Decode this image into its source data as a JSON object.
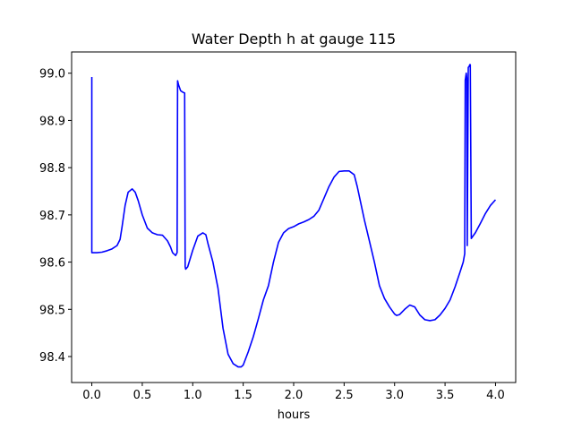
{
  "chart_data": {
    "type": "line",
    "title": "Water Depth h at gauge 115",
    "xlabel": "hours",
    "ylabel": "",
    "xlim": [
      -0.2,
      4.2
    ],
    "ylim": [
      98.345,
      99.045
    ],
    "xticks": [
      0.0,
      0.5,
      1.0,
      1.5,
      2.0,
      2.5,
      3.0,
      3.5,
      4.0
    ],
    "xtick_labels": [
      "0.0",
      "0.5",
      "1.0",
      "1.5",
      "2.0",
      "2.5",
      "3.0",
      "3.5",
      "4.0"
    ],
    "yticks": [
      98.4,
      98.5,
      98.6,
      98.7,
      98.8,
      98.9,
      99.0
    ],
    "ytick_labels": [
      "98.4",
      "98.5",
      "98.6",
      "98.7",
      "98.8",
      "98.9",
      "99.0"
    ],
    "grid": false,
    "legend": "none",
    "series": [
      {
        "color": "#0000ff",
        "x": [
          0.0,
          0.0,
          0.003,
          0.05,
          0.1,
          0.15,
          0.2,
          0.25,
          0.28,
          0.3,
          0.33,
          0.36,
          0.4,
          0.43,
          0.46,
          0.5,
          0.55,
          0.6,
          0.65,
          0.7,
          0.75,
          0.78,
          0.8,
          0.83,
          0.845,
          0.85,
          0.86,
          0.88,
          0.9,
          0.92,
          0.925,
          0.93,
          0.95,
          1.0,
          1.05,
          1.1,
          1.13,
          1.15,
          1.2,
          1.25,
          1.3,
          1.35,
          1.4,
          1.45,
          1.48,
          1.5,
          1.55,
          1.6,
          1.65,
          1.7,
          1.75,
          1.8,
          1.85,
          1.9,
          1.95,
          2.0,
          2.05,
          2.1,
          2.15,
          2.2,
          2.25,
          2.3,
          2.35,
          2.4,
          2.45,
          2.5,
          2.55,
          2.6,
          2.63,
          2.67,
          2.7,
          2.75,
          2.8,
          2.85,
          2.9,
          2.95,
          3.0,
          3.02,
          3.05,
          3.1,
          3.15,
          3.2,
          3.25,
          3.3,
          3.35,
          3.4,
          3.45,
          3.5,
          3.55,
          3.6,
          3.65,
          3.68,
          3.695,
          3.7,
          3.71,
          3.715,
          3.72,
          3.73,
          3.74,
          3.745,
          3.75,
          3.76,
          3.8,
          3.85,
          3.9,
          3.95,
          4.0
        ],
        "y": [
          98.992,
          98.62,
          98.62,
          98.62,
          98.621,
          98.624,
          98.628,
          98.635,
          98.648,
          98.675,
          98.72,
          98.748,
          98.755,
          98.748,
          98.73,
          98.7,
          98.672,
          98.662,
          98.658,
          98.657,
          98.645,
          98.632,
          98.62,
          98.614,
          98.62,
          98.984,
          98.975,
          98.963,
          98.96,
          98.958,
          98.59,
          98.585,
          98.59,
          98.625,
          98.655,
          98.662,
          98.658,
          98.64,
          98.6,
          98.545,
          98.46,
          98.405,
          98.385,
          98.378,
          98.378,
          98.382,
          98.41,
          98.442,
          98.48,
          98.52,
          98.55,
          98.6,
          98.642,
          98.662,
          98.671,
          98.675,
          98.681,
          98.685,
          98.69,
          98.697,
          98.71,
          98.735,
          98.76,
          98.78,
          98.792,
          98.793,
          98.793,
          98.785,
          98.76,
          98.72,
          98.69,
          98.645,
          98.6,
          98.55,
          98.523,
          98.505,
          98.49,
          98.487,
          98.489,
          98.5,
          98.509,
          98.505,
          98.488,
          98.478,
          98.476,
          98.478,
          98.488,
          98.502,
          98.52,
          98.548,
          98.58,
          98.6,
          98.618,
          98.985,
          99.0,
          98.99,
          98.635,
          99.012,
          99.015,
          99.018,
          99.018,
          98.65,
          98.662,
          98.682,
          98.703,
          98.72,
          98.732
        ]
      }
    ]
  }
}
